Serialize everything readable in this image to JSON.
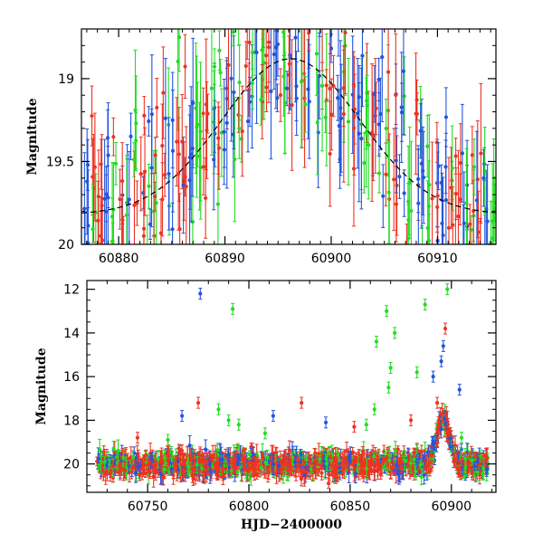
{
  "chart_data": [
    {
      "type": "scatter",
      "panel": "top",
      "ylabel": "Magnitude",
      "xlabel": "",
      "xlim": [
        60876.5,
        60915.5
      ],
      "ylim": [
        20.0,
        18.7
      ],
      "y_inverted": true,
      "x_ticks": [
        60880,
        60890,
        60900,
        60910
      ],
      "y_ticks": [
        19,
        19.5,
        20
      ],
      "y_tick_labels": [
        "19",
        "19.5",
        "20"
      ],
      "series_colors": [
        "#2255dd",
        "#22dd22",
        "#ee3322"
      ],
      "model_curve": {
        "peak_x": 60896.2,
        "peak_mag": 18.88,
        "base_mag": 19.82,
        "width_days": 6.5,
        "color": "#000000",
        "style": "dashed"
      }
    },
    {
      "type": "scatter",
      "panel": "bottom",
      "ylabel": "Magnitude",
      "xlabel": "HJD−2400000",
      "xlim": [
        60720,
        60922
      ],
      "ylim": [
        21.3,
        11.6
      ],
      "y_inverted": true,
      "x_ticks": [
        60750,
        60800,
        60850,
        60900
      ],
      "y_ticks": [
        12,
        14,
        16,
        18,
        20
      ],
      "series_colors": [
        "#2255dd",
        "#22dd22",
        "#ee3322"
      ],
      "baseline_mag": 20.0,
      "baseline_range": [
        60725,
        60918
      ],
      "outliers": [
        {
          "x": 60776,
          "y": 12.2,
          "c": 1
        },
        {
          "x": 60792,
          "y": 12.9,
          "c": 2
        },
        {
          "x": 60868,
          "y": 13.0,
          "c": 2
        },
        {
          "x": 60872,
          "y": 14.0,
          "c": 2
        },
        {
          "x": 60863,
          "y": 14.4,
          "c": 2
        },
        {
          "x": 60887,
          "y": 12.7,
          "c": 2
        },
        {
          "x": 60898,
          "y": 12.0,
          "c": 2
        },
        {
          "x": 60897,
          "y": 13.8,
          "c": 3
        },
        {
          "x": 60896,
          "y": 14.6,
          "c": 1
        },
        {
          "x": 60895,
          "y": 15.3,
          "c": 1
        },
        {
          "x": 60904,
          "y": 16.6,
          "c": 1
        },
        {
          "x": 60891,
          "y": 16.0,
          "c": 1
        },
        {
          "x": 60870,
          "y": 15.6,
          "c": 2
        },
        {
          "x": 60869,
          "y": 16.5,
          "c": 2
        },
        {
          "x": 60883,
          "y": 15.8,
          "c": 2
        },
        {
          "x": 60775,
          "y": 17.2,
          "c": 3
        },
        {
          "x": 60767,
          "y": 17.8,
          "c": 1
        },
        {
          "x": 60785,
          "y": 17.5,
          "c": 2
        },
        {
          "x": 60790,
          "y": 18.0,
          "c": 2
        },
        {
          "x": 60795,
          "y": 18.2,
          "c": 2
        },
        {
          "x": 60812,
          "y": 17.8,
          "c": 1
        },
        {
          "x": 60826,
          "y": 17.2,
          "c": 3
        },
        {
          "x": 60838,
          "y": 18.1,
          "c": 1
        },
        {
          "x": 60852,
          "y": 18.3,
          "c": 3
        },
        {
          "x": 60858,
          "y": 18.2,
          "c": 2
        },
        {
          "x": 60880,
          "y": 18.0,
          "c": 3
        },
        {
          "x": 60862,
          "y": 17.5,
          "c": 2
        },
        {
          "x": 60808,
          "y": 18.6,
          "c": 2
        },
        {
          "x": 60745,
          "y": 18.8,
          "c": 3
        },
        {
          "x": 60760,
          "y": 18.9,
          "c": 2
        },
        {
          "x": 60893,
          "y": 17.2,
          "c": 3
        },
        {
          "x": 60905,
          "y": 18.8,
          "c": 2
        }
      ]
    }
  ]
}
